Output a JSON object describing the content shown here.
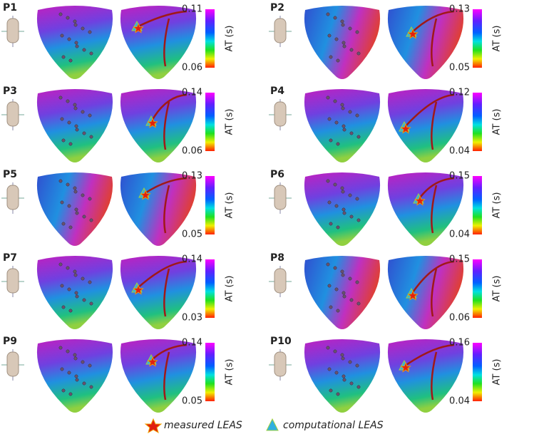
{
  "panels": [
    {
      "label": "P1",
      "colorbar": {
        "max": "0.11",
        "min": "0.06",
        "title": "AT (s)"
      }
    },
    {
      "label": "P2",
      "colorbar": {
        "max": "0.13",
        "min": "0.05",
        "title": "AT (s)"
      }
    },
    {
      "label": "P3",
      "colorbar": {
        "max": "0.14",
        "min": "0.06",
        "title": "AT (s)"
      }
    },
    {
      "label": "P4",
      "colorbar": {
        "max": "0.12",
        "min": "0.04",
        "title": "AT (s)"
      }
    },
    {
      "label": "P5",
      "colorbar": {
        "max": "0.13",
        "min": "0.05",
        "title": "AT (s)"
      }
    },
    {
      "label": "P6",
      "colorbar": {
        "max": "0.15",
        "min": "0.04",
        "title": "AT (s)"
      }
    },
    {
      "label": "P7",
      "colorbar": {
        "max": "0.14",
        "min": "0.03",
        "title": "AT (s)"
      }
    },
    {
      "label": "P8",
      "colorbar": {
        "max": "0.15",
        "min": "0.06",
        "title": "AT (s)"
      }
    },
    {
      "label": "P9",
      "colorbar": {
        "max": "0.14",
        "min": "0.05",
        "title": "AT (s)"
      }
    },
    {
      "label": "P10",
      "colorbar": {
        "max": "0.16",
        "min": "0.04",
        "title": "AT (s)"
      }
    }
  ],
  "legend": {
    "measured": "measured LEAS",
    "computational": "computational LEAS"
  }
}
